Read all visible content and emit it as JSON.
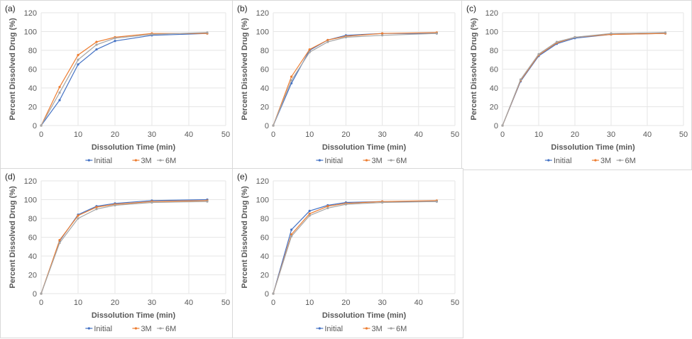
{
  "figure": {
    "legend_labels": [
      "Initial",
      "3M",
      "6M"
    ],
    "colors": {
      "Initial": "#4472c4",
      "3M": "#ed7d31",
      "6M": "#a5a5a5"
    }
  },
  "chart_data": [
    {
      "type": "line",
      "panel_label": "(a)",
      "title": "",
      "xlabel": "Dissolution Time (min)",
      "ylabel": "Percent Dissolved Drug (%)",
      "xlim": [
        0,
        50
      ],
      "ylim": [
        0,
        120
      ],
      "xticks": [
        0,
        10,
        20,
        30,
        40,
        50
      ],
      "yticks": [
        0,
        20,
        40,
        60,
        80,
        100,
        120
      ],
      "grid": true,
      "legend": "bottom",
      "x": [
        0,
        5,
        10,
        15,
        20,
        30,
        45
      ],
      "series": [
        {
          "name": "Initial",
          "color": "#4472c4",
          "values": [
            0,
            27,
            65,
            81,
            90,
            96,
            98
          ]
        },
        {
          "name": "3M",
          "color": "#ed7d31",
          "values": [
            0,
            41,
            75,
            89,
            94,
            98,
            98
          ]
        },
        {
          "name": "6M",
          "color": "#a5a5a5",
          "values": [
            0,
            35,
            70,
            86,
            93,
            97,
            99
          ]
        }
      ]
    },
    {
      "type": "line",
      "panel_label": "(b)",
      "title": "",
      "xlabel": "Dissolution Time (min)",
      "ylabel": "Percent Dissolved Drug (%)",
      "xlim": [
        0,
        50
      ],
      "ylim": [
        0,
        120
      ],
      "xticks": [
        0,
        10,
        20,
        30,
        40,
        50
      ],
      "yticks": [
        0,
        20,
        40,
        60,
        80,
        100,
        120
      ],
      "grid": true,
      "legend": "bottom",
      "x": [
        0,
        5,
        10,
        15,
        20,
        30,
        45
      ],
      "series": [
        {
          "name": "Initial",
          "color": "#4472c4",
          "values": [
            0,
            45,
            80,
            91,
            96,
            98,
            98
          ]
        },
        {
          "name": "3M",
          "color": "#ed7d31",
          "values": [
            0,
            52,
            81,
            91,
            95,
            98,
            99
          ]
        },
        {
          "name": "6M",
          "color": "#a5a5a5",
          "values": [
            0,
            48,
            78,
            89,
            94,
            96,
            98
          ]
        }
      ]
    },
    {
      "type": "line",
      "panel_label": "(c)",
      "title": "",
      "xlabel": "Dissolution Time (min)",
      "ylabel": "Percent Dissolved Drug (%)",
      "xlim": [
        0,
        50
      ],
      "ylim": [
        0,
        120
      ],
      "xticks": [
        0,
        10,
        20,
        30,
        40,
        50
      ],
      "yticks": [
        0,
        20,
        40,
        60,
        80,
        100,
        120
      ],
      "grid": true,
      "legend": "bottom",
      "x": [
        0,
        5,
        10,
        15,
        20,
        30,
        45
      ],
      "series": [
        {
          "name": "Initial",
          "color": "#4472c4",
          "values": [
            0,
            47,
            74,
            87,
            93,
            97,
            98
          ]
        },
        {
          "name": "3M",
          "color": "#ed7d31",
          "values": [
            0,
            48,
            75,
            88,
            94,
            97,
            98
          ]
        },
        {
          "name": "6M",
          "color": "#a5a5a5",
          "values": [
            0,
            49,
            76,
            89,
            94,
            98,
            99
          ]
        }
      ]
    },
    {
      "type": "line",
      "panel_label": "(d)",
      "title": "",
      "xlabel": "Dissolution Time (min)",
      "ylabel": "Percent Dissolved Drug (%)",
      "xlim": [
        0,
        50
      ],
      "ylim": [
        0,
        120
      ],
      "xticks": [
        0,
        10,
        20,
        30,
        40,
        50
      ],
      "yticks": [
        0,
        20,
        40,
        60,
        80,
        100,
        120
      ],
      "grid": true,
      "legend": "bottom",
      "x": [
        0,
        5,
        10,
        15,
        20,
        30,
        45
      ],
      "series": [
        {
          "name": "Initial",
          "color": "#4472c4",
          "values": [
            0,
            56,
            84,
            93,
            96,
            99,
            100
          ]
        },
        {
          "name": "3M",
          "color": "#ed7d31",
          "values": [
            0,
            57,
            83,
            92,
            95,
            98,
            99
          ]
        },
        {
          "name": "6M",
          "color": "#a5a5a5",
          "values": [
            0,
            54,
            80,
            90,
            94,
            97,
            98
          ]
        }
      ]
    },
    {
      "type": "line",
      "panel_label": "(e)",
      "title": "",
      "xlabel": "Dissolution Time (min)",
      "ylabel": "Percent Dissolved Drug (%)",
      "xlim": [
        0,
        50
      ],
      "ylim": [
        0,
        120
      ],
      "xticks": [
        0,
        10,
        20,
        30,
        40,
        50
      ],
      "yticks": [
        0,
        20,
        40,
        60,
        80,
        100,
        120
      ],
      "grid": true,
      "legend": "bottom",
      "x": [
        0,
        5,
        10,
        15,
        20,
        30,
        45
      ],
      "series": [
        {
          "name": "Initial",
          "color": "#4472c4",
          "values": [
            0,
            68,
            88,
            94,
            97,
            98,
            98
          ]
        },
        {
          "name": "3M",
          "color": "#ed7d31",
          "values": [
            0,
            63,
            85,
            93,
            96,
            98,
            99
          ]
        },
        {
          "name": "6M",
          "color": "#a5a5a5",
          "values": [
            0,
            61,
            83,
            91,
            95,
            97,
            98
          ]
        }
      ]
    }
  ]
}
